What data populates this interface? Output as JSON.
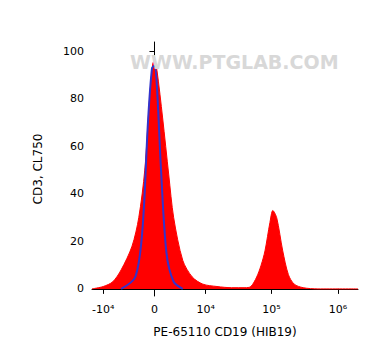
{
  "chart_data": {
    "type": "histogram",
    "x_label": "PE-65110 CD19 (HIB19)",
    "y_label": "CD3, CL750",
    "annotations": [
      "WWW.PTGLAB.COM"
    ],
    "xlim": [
      -15000,
      2000000
    ],
    "xticks": [
      {
        "value": -10000,
        "label": "-10⁴"
      },
      0,
      {
        "value": 10000,
        "label": "10⁴"
      },
      {
        "value": 100000,
        "label": "10⁵"
      },
      {
        "value": 1000000,
        "label": "10⁶"
      }
    ],
    "ylim": [
      -3,
      104
    ],
    "yticks": [
      0,
      20,
      40,
      60,
      80,
      100
    ],
    "grid": false,
    "series": [
      {
        "type": "area",
        "color": "#ff0000",
        "x": [
          -15000,
          -10000,
          -7000,
          -5000,
          -3000,
          -2000,
          -1200,
          -600,
          -200,
          0,
          300,
          1000,
          1800,
          2500,
          4000,
          6000,
          9000,
          15000,
          25000,
          40000,
          49000,
          60000,
          70000,
          80000,
          95000,
          105000,
          120000,
          148000,
          180000,
          220000,
          300000,
          500000,
          2000000
        ],
        "values": [
          0,
          1,
          3,
          8,
          18,
          30,
          50,
          80,
          95,
          96,
          92,
          72,
          48,
          30,
          12,
          5,
          2,
          1,
          0.5,
          0.5,
          1,
          5,
          10,
          16,
          28,
          33,
          30,
          16,
          6,
          2,
          0.5,
          0,
          0
        ]
      },
      {
        "type": "line",
        "color": "#3333cc",
        "x": [
          -5000,
          -2500,
          -1500,
          -800,
          -300,
          0,
          300,
          800,
          1500,
          2500,
          4000
        ],
        "values": [
          0,
          5,
          25,
          70,
          93,
          94,
          85,
          50,
          15,
          3,
          0
        ]
      }
    ]
  }
}
